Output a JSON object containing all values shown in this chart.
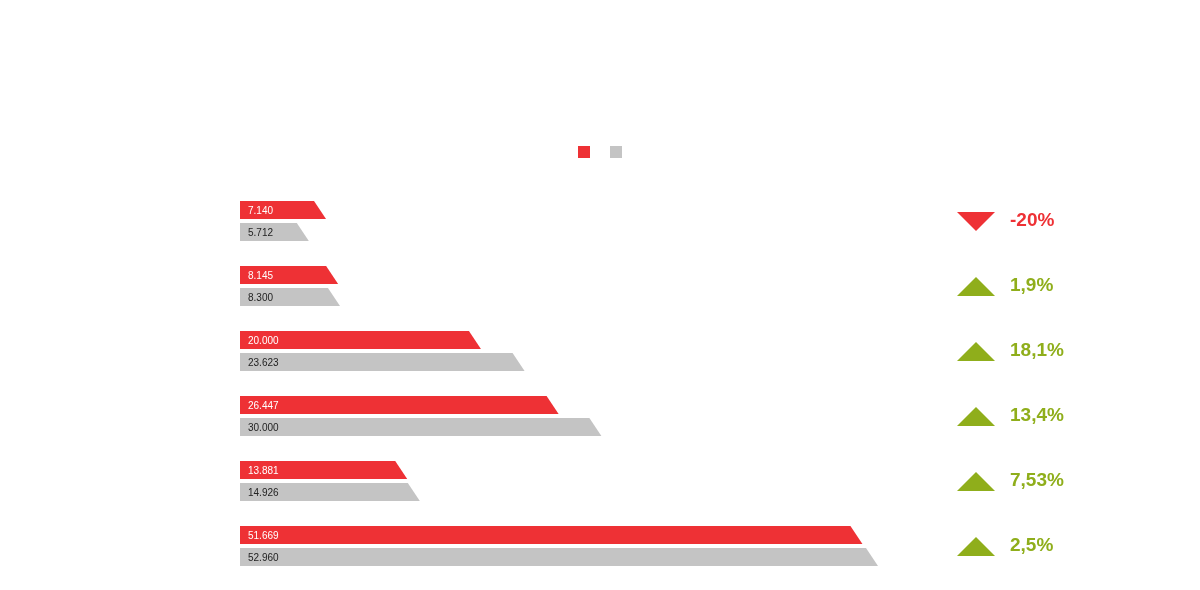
{
  "chart_data": {
    "type": "bar",
    "orientation": "horizontal",
    "categories": [
      null,
      null,
      null,
      null,
      null,
      null
    ],
    "series": [
      {
        "color": "#ee3135",
        "values": [
          7140,
          8145,
          20000,
          26447,
          13881,
          51669
        ],
        "value_labels": [
          "7.140",
          "8.145",
          "20.000",
          "26.447",
          "13.881",
          "51.669"
        ]
      },
      {
        "color": "#c4c4c4",
        "values": [
          5712,
          8300,
          23623,
          30000,
          14926,
          52960
        ],
        "value_labels": [
          "5.712",
          "8.300",
          "23.623",
          "30.000",
          "14.926",
          "52.960"
        ]
      }
    ],
    "annotations": [
      "-20%",
      "1,9%",
      "18,1%",
      "13,4%",
      "7,53%",
      "2,5%"
    ],
    "grid": false
  }
}
